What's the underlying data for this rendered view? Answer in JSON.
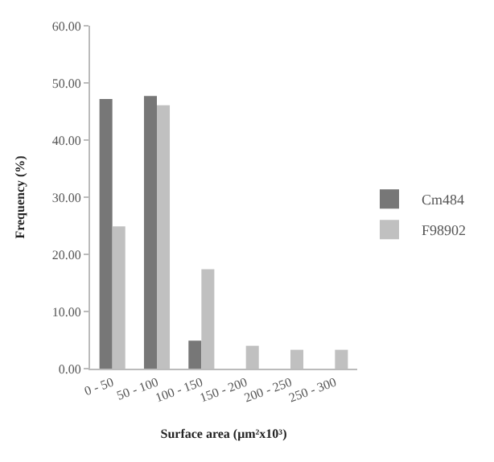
{
  "chart_data": {
    "type": "bar",
    "xlabel": "Surface area (μm²x10³)",
    "ylabel": "Frequency (%)",
    "categories": [
      "0 - 50",
      "50 - 100",
      "100 - 150",
      "150 - 200",
      "200 - 250",
      "250 - 300"
    ],
    "series": [
      {
        "name": "Cm484",
        "color": "#777777",
        "values": [
          47.2,
          47.7,
          4.9,
          0,
          0,
          0
        ]
      },
      {
        "name": "F98902",
        "color": "#c0c0c0",
        "values": [
          24.9,
          46.1,
          17.4,
          4.0,
          3.3,
          3.3
        ]
      }
    ],
    "ylim": [
      0,
      60
    ],
    "yticks": [
      {
        "value": 0,
        "label": "0.00"
      },
      {
        "value": 10,
        "label": "10.00"
      },
      {
        "value": 20,
        "label": "20.00"
      },
      {
        "value": 30,
        "label": "30.00"
      },
      {
        "value": 40,
        "label": "40.00"
      },
      {
        "value": 50,
        "label": "50.00"
      },
      {
        "value": 60,
        "label": "60.00"
      }
    ],
    "legend": "right"
  }
}
